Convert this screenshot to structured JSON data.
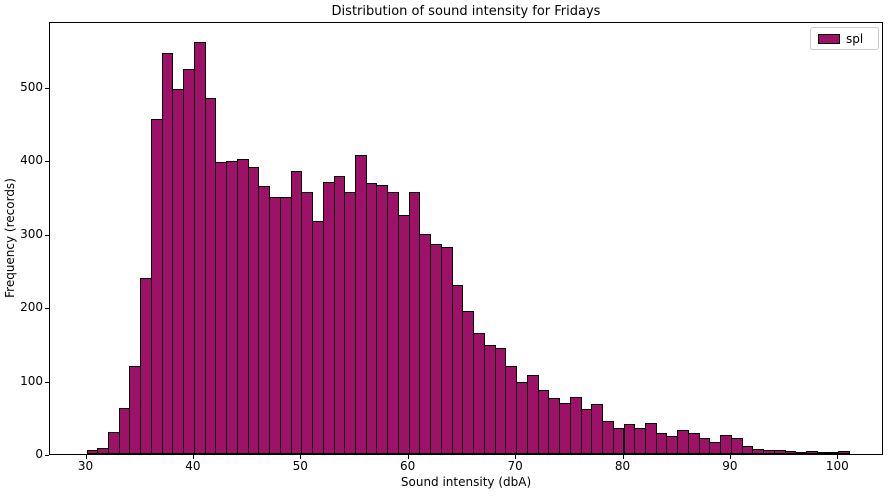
{
  "title": "Distribution of sound intensity for Fridays",
  "axes": {
    "xlabel": "Sound intensity (dbA)",
    "ylabel": "Frequency (records)",
    "x_tick_labels": [
      "30",
      "40",
      "50",
      "60",
      "70",
      "80",
      "90",
      "100"
    ],
    "y_tick_labels": [
      "0",
      "100",
      "200",
      "300",
      "400",
      "500"
    ]
  },
  "legend": {
    "label": "spl",
    "position": "upper right"
  },
  "colors": {
    "bar_fill": "#9E1168",
    "bar_edge": "#000000",
    "legend_border": "#cccccc",
    "background": "#ffffff"
  },
  "chart_data": {
    "type": "bar",
    "subtype": "histogram",
    "title": "Distribution of sound intensity for Fridays",
    "xlabel": "Sound intensity (dbA)",
    "ylabel": "Frequency (records)",
    "series_name": "spl",
    "bin_start": 30,
    "bin_width": 1,
    "bin_left_edges": [
      30,
      31,
      32,
      33,
      34,
      35,
      36,
      37,
      38,
      39,
      40,
      41,
      42,
      43,
      44,
      45,
      46,
      47,
      48,
      49,
      50,
      51,
      52,
      53,
      54,
      55,
      56,
      57,
      58,
      59,
      60,
      61,
      62,
      63,
      64,
      65,
      66,
      67,
      68,
      69,
      70,
      71,
      72,
      73,
      74,
      75,
      76,
      77,
      78,
      79,
      80,
      81,
      82,
      83,
      84,
      85,
      86,
      87,
      88,
      89,
      90,
      91,
      92,
      93,
      94,
      95,
      96,
      97,
      98,
      99,
      100
    ],
    "counts": [
      5,
      8,
      30,
      62,
      120,
      240,
      456,
      546,
      497,
      524,
      560,
      485,
      397,
      399,
      402,
      390,
      365,
      350,
      350,
      385,
      356,
      317,
      370,
      378,
      357,
      407,
      369,
      366,
      356,
      325,
      356,
      299,
      286,
      281,
      230,
      195,
      164,
      148,
      144,
      120,
      98,
      108,
      87,
      76,
      70,
      78,
      61,
      68,
      45,
      36,
      41,
      35,
      42,
      29,
      25,
      33,
      29,
      22,
      16,
      26,
      22,
      11,
      7,
      5,
      6,
      4,
      3,
      4,
      2,
      2,
      4
    ],
    "x_ticks": [
      30,
      40,
      50,
      60,
      70,
      80,
      90,
      100
    ],
    "y_ticks": [
      0,
      100,
      200,
      300,
      400,
      500
    ],
    "xlim": [
      26.7,
      104.3
    ],
    "ylim": [
      0,
      588
    ],
    "grid": false,
    "legend_position": "upper right"
  }
}
